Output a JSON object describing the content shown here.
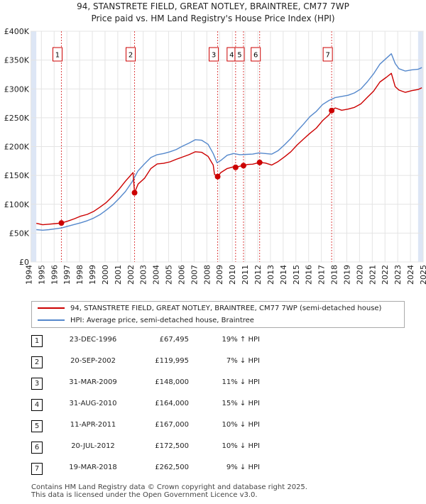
{
  "title_line1": "94, STANSTRETE FIELD, GREAT NOTLEY, BRAINTREE, CM77 7WP",
  "title_line2": "Price paid vs. HM Land Registry's House Price Index (HPI)",
  "colors": {
    "property": "#cc0000",
    "hpi": "#5588cc",
    "shade": "#dde6f5",
    "vline": "#dd4444"
  },
  "chart_data": {
    "type": "line",
    "ylim": [
      0,
      400000
    ],
    "xlim": [
      1995,
      2025.4
    ],
    "y_ticks": [
      0,
      50000,
      100000,
      150000,
      200000,
      250000,
      300000,
      350000,
      400000
    ],
    "y_tick_labels": [
      "£0",
      "£50K",
      "£100K",
      "£150K",
      "£200K",
      "£250K",
      "£300K",
      "£350K",
      "£400K"
    ],
    "x_ticks": [
      1994,
      1995,
      1996,
      1997,
      1998,
      1999,
      2000,
      2001,
      2002,
      2003,
      2004,
      2005,
      2006,
      2007,
      2008,
      2009,
      2010,
      2011,
      2012,
      2013,
      2014,
      2015,
      2016,
      2017,
      2018,
      2019,
      2020,
      2021,
      2022,
      2023,
      2024,
      2025
    ],
    "grid": true,
    "series": [
      {
        "name": "94, STANSTRETE FIELD, GREAT NOTLEY, BRAINTREE, CM77 7WP (semi-detached house)",
        "color": "#cc0000",
        "x": [
          1995.0,
          1995.5,
          1996.0,
          1996.5,
          1996.97,
          1997.5,
          1998.0,
          1998.5,
          1999.0,
          1999.5,
          2000.0,
          2000.5,
          2001.0,
          2001.5,
          2002.0,
          2002.6,
          2002.72,
          2003.0,
          2003.5,
          2004.0,
          2004.5,
          2005.0,
          2005.5,
          2006.0,
          2006.5,
          2007.0,
          2007.5,
          2008.0,
          2008.5,
          2008.9,
          2009.0,
          2009.25,
          2009.5,
          2010.0,
          2010.5,
          2010.66,
          2011.0,
          2011.28,
          2011.6,
          2012.0,
          2012.55,
          2013.0,
          2013.5,
          2014.0,
          2014.5,
          2015.0,
          2015.5,
          2016.0,
          2016.5,
          2017.0,
          2017.5,
          2018.0,
          2018.21,
          2018.5,
          2019.0,
          2019.5,
          2020.0,
          2020.5,
          2021.0,
          2021.5,
          2022.0,
          2022.5,
          2022.9,
          2023.2,
          2023.5,
          2024.0,
          2024.5,
          2025.0,
          2025.3
        ],
        "y": [
          67000,
          64500,
          65500,
          66500,
          67495,
          71000,
          75000,
          79500,
          82500,
          87500,
          95000,
          103000,
          114000,
          126000,
          140000,
          155000,
          119995,
          135000,
          145000,
          162000,
          170000,
          171000,
          173500,
          178000,
          182000,
          186000,
          191000,
          190000,
          183000,
          168000,
          152000,
          148000,
          155000,
          162000,
          165000,
          164000,
          166000,
          167000,
          169000,
          169500,
          172500,
          171500,
          168000,
          174000,
          182000,
          191000,
          203000,
          213000,
          223000,
          232000,
          245000,
          255000,
          262500,
          267000,
          263000,
          265000,
          268000,
          274000,
          285000,
          296000,
          312000,
          320000,
          327000,
          304000,
          298000,
          294000,
          297000,
          299000,
          302000
        ]
      },
      {
        "name": "HPI: Average price, semi-detached house, Braintree",
        "color": "#5588cc",
        "x": [
          1995.0,
          1995.5,
          1996.0,
          1996.5,
          1997.0,
          1997.5,
          1998.0,
          1998.5,
          1999.0,
          1999.5,
          2000.0,
          2000.5,
          2001.0,
          2001.5,
          2002.0,
          2002.5,
          2003.0,
          2003.5,
          2004.0,
          2004.5,
          2005.0,
          2005.5,
          2006.0,
          2006.5,
          2007.0,
          2007.5,
          2008.0,
          2008.5,
          2008.9,
          2009.2,
          2009.5,
          2010.0,
          2010.5,
          2011.0,
          2011.5,
          2012.0,
          2012.5,
          2013.0,
          2013.5,
          2014.0,
          2014.5,
          2015.0,
          2015.5,
          2016.0,
          2016.5,
          2017.0,
          2017.5,
          2018.0,
          2018.5,
          2019.0,
          2019.5,
          2020.0,
          2020.5,
          2021.0,
          2021.5,
          2022.0,
          2022.5,
          2022.9,
          2023.2,
          2023.5,
          2024.0,
          2024.5,
          2025.0,
          2025.3
        ],
        "y": [
          56000,
          55000,
          56000,
          57500,
          59000,
          62000,
          65000,
          68000,
          71500,
          76000,
          82000,
          90000,
          99000,
          110000,
          122000,
          138000,
          158000,
          170000,
          181000,
          186000,
          188000,
          191000,
          195000,
          201000,
          206000,
          212000,
          211000,
          204000,
          188000,
          172000,
          176000,
          185000,
          188000,
          186000,
          186500,
          187000,
          189000,
          188000,
          187000,
          193000,
          203000,
          214000,
          227000,
          239000,
          252000,
          261000,
          273000,
          280000,
          285000,
          287000,
          289000,
          293000,
          300000,
          312000,
          326000,
          343000,
          353000,
          361000,
          344000,
          335000,
          331000,
          333000,
          334000,
          337000
        ]
      }
    ],
    "sales": [
      {
        "label": "1",
        "x": 1996.97,
        "y": 67495
      },
      {
        "label": "2",
        "x": 2002.72,
        "y": 119995
      },
      {
        "label": "3",
        "x": 2009.25,
        "y": 148000
      },
      {
        "label": "4",
        "x": 2010.66,
        "y": 164000
      },
      {
        "label": "5",
        "x": 2011.28,
        "y": 167000
      },
      {
        "label": "6",
        "x": 2012.55,
        "y": 172500
      },
      {
        "label": "7",
        "x": 2018.21,
        "y": 262500
      }
    ],
    "shaded_spans": [
      [
        1994.6,
        1995.0
      ],
      [
        2025.0,
        2025.4
      ]
    ]
  },
  "legend": {
    "property": "94, STANSTRETE FIELD, GREAT NOTLEY, BRAINTREE, CM77 7WP (semi-detached house)",
    "hpi": "HPI: Average price, semi-detached house, Braintree"
  },
  "transactions": [
    {
      "num": "1",
      "date": "23-DEC-1996",
      "price": "£67,495",
      "hpi": "19% ↑ HPI"
    },
    {
      "num": "2",
      "date": "20-SEP-2002",
      "price": "£119,995",
      "hpi": "7% ↓ HPI"
    },
    {
      "num": "3",
      "date": "31-MAR-2009",
      "price": "£148,000",
      "hpi": "11% ↓ HPI"
    },
    {
      "num": "4",
      "date": "31-AUG-2010",
      "price": "£164,000",
      "hpi": "15% ↓ HPI"
    },
    {
      "num": "5",
      "date": "11-APR-2011",
      "price": "£167,000",
      "hpi": "10% ↓ HPI"
    },
    {
      "num": "6",
      "date": "20-JUL-2012",
      "price": "£172,500",
      "hpi": "10% ↓ HPI"
    },
    {
      "num": "7",
      "date": "19-MAR-2018",
      "price": "£262,500",
      "hpi": "9% ↓ HPI"
    }
  ],
  "footer_line1": "Contains HM Land Registry data © Crown copyright and database right 2025.",
  "footer_line2": "This data is licensed under the Open Government Licence v3.0."
}
